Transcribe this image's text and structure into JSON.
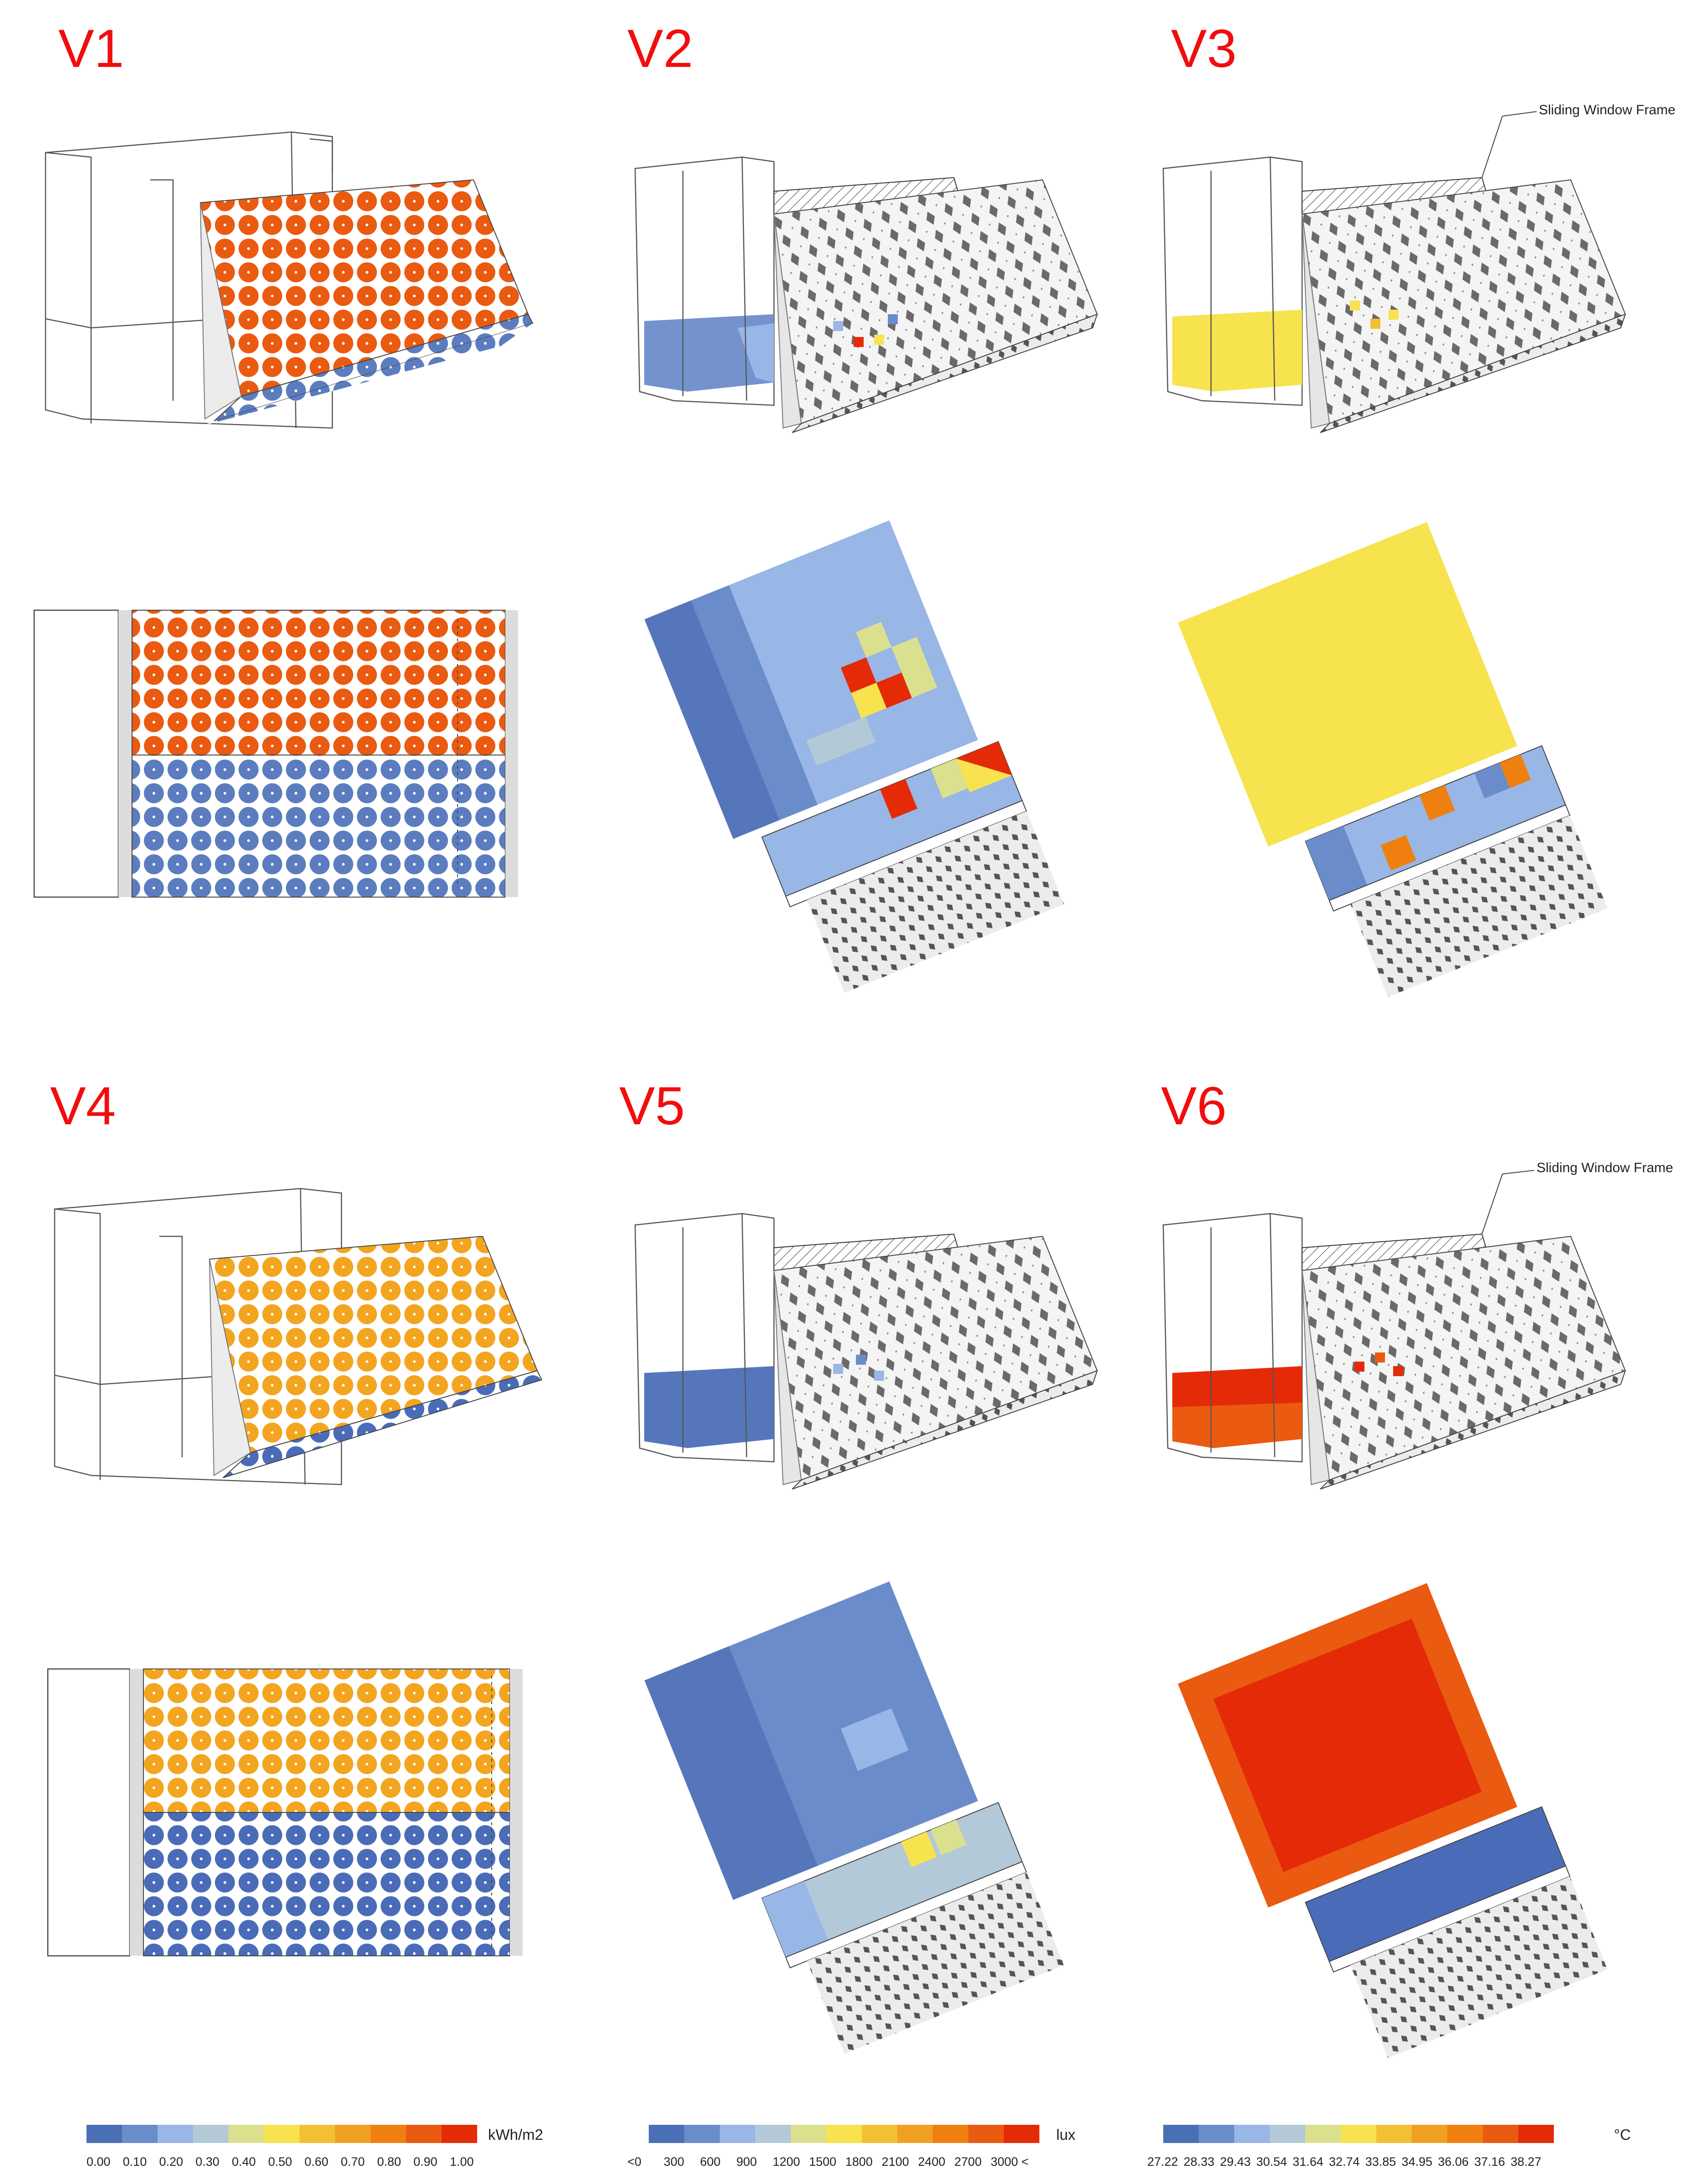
{
  "panels": {
    "v1": {
      "label": "V1"
    },
    "v2": {
      "label": "V2"
    },
    "v3": {
      "label": "V3",
      "annotation": "Sliding Window Frame"
    },
    "v4": {
      "label": "V4"
    },
    "v5": {
      "label": "V5"
    },
    "v6": {
      "label": "V6",
      "annotation": "Sliding Window Frame"
    }
  },
  "legends": [
    {
      "unit": "kWh/m2",
      "ticks": [
        "0.00",
        "0.10",
        "0.20",
        "0.30",
        "0.40",
        "0.50",
        "0.60",
        "0.70",
        "0.80",
        "0.90",
        "1.00"
      ]
    },
    {
      "unit": "lux",
      "ticks": [
        "<0",
        "300",
        "600",
        "900",
        "1200",
        "1500",
        "1800",
        "2100",
        "2400",
        "2700",
        "3000 <"
      ]
    },
    {
      "unit": "°C",
      "ticks": [
        "27.22",
        "28.33",
        "29.43",
        "30.54",
        "31.64",
        "32.74",
        "33.85",
        "34.95",
        "36.06",
        "37.16",
        "38.27"
      ]
    }
  ],
  "colors": {
    "scale": [
      "#4a6fb5",
      "#6b8ccb",
      "#98b6e6",
      "#b3c9d8",
      "#dbe08f",
      "#f6e34e",
      "#f3c033",
      "#f0a020",
      "#ef8010",
      "#ea5a10",
      "#e52a08"
    ],
    "label_red": "#f20d0d",
    "v1_top": "#ea5a10",
    "v1_bottom": "#5b7dc0",
    "v4_top": "#f3a520",
    "v4_bottom": "#4a6cb8",
    "v3_floor": "#f6e34e",
    "v6_floor": "#e52a08",
    "blue_floor": "#6b8ccb"
  }
}
